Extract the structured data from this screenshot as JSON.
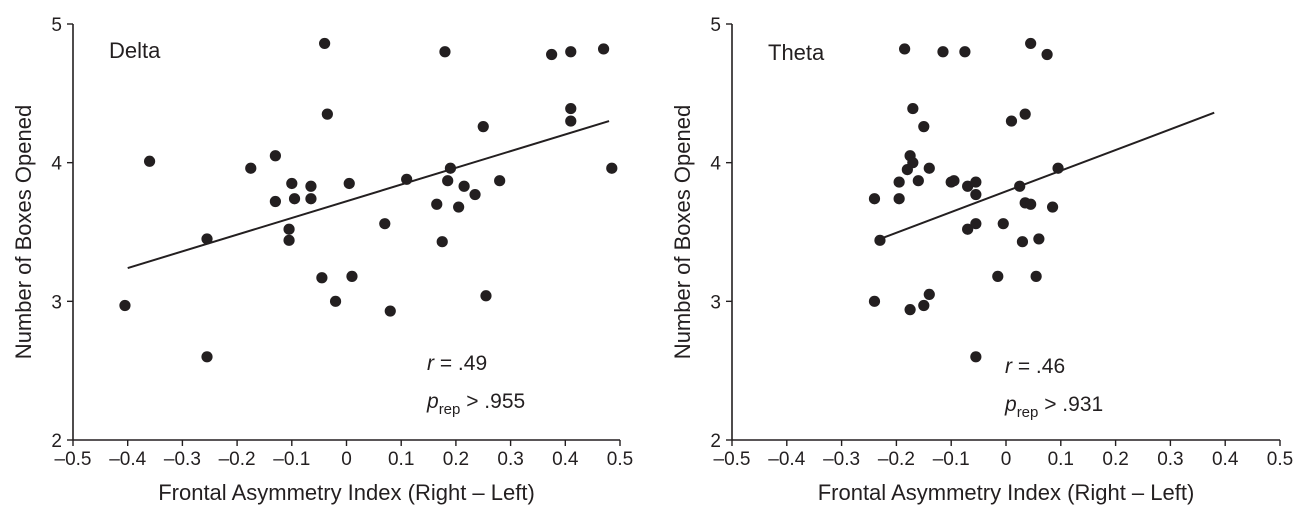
{
  "chart_data": [
    {
      "type": "scatter",
      "panel_label": "Delta",
      "xlabel": "Frontal Asymmetry Index (Right – Left)",
      "ylabel": "Number of Boxes Opened",
      "xlim": [
        -0.5,
        0.5
      ],
      "ylim": [
        2,
        5
      ],
      "x_ticks": [
        "–0.5",
        "–0.4",
        "–0.3",
        "–0.2",
        "–0.1",
        "0",
        "0.1",
        "0.2",
        "0.3",
        "0.4",
        "0.5"
      ],
      "y_ticks": [
        "2",
        "3",
        "4",
        "5"
      ],
      "grid": false,
      "stats": {
        "r_symbol": "r",
        "r_value": " = .49",
        "p_symbol": "p",
        "p_sub": "rep",
        "p_value": " > .955"
      },
      "fit_line": {
        "x": [
          -0.4,
          0.48
        ],
        "y": [
          3.24,
          4.3
        ]
      },
      "points": [
        {
          "x": -0.405,
          "y": 2.97
        },
        {
          "x": -0.36,
          "y": 4.01
        },
        {
          "x": -0.255,
          "y": 3.45
        },
        {
          "x": -0.255,
          "y": 2.6
        },
        {
          "x": -0.175,
          "y": 3.96
        },
        {
          "x": -0.13,
          "y": 4.05
        },
        {
          "x": -0.13,
          "y": 3.72
        },
        {
          "x": -0.1,
          "y": 3.85
        },
        {
          "x": -0.095,
          "y": 3.74
        },
        {
          "x": -0.105,
          "y": 3.52
        },
        {
          "x": -0.105,
          "y": 3.44
        },
        {
          "x": -0.065,
          "y": 3.83
        },
        {
          "x": -0.065,
          "y": 3.74
        },
        {
          "x": -0.04,
          "y": 4.86
        },
        {
          "x": -0.035,
          "y": 4.35
        },
        {
          "x": -0.045,
          "y": 3.17
        },
        {
          "x": -0.02,
          "y": 3.0
        },
        {
          "x": 0.005,
          "y": 3.85
        },
        {
          "x": 0.01,
          "y": 3.18
        },
        {
          "x": 0.07,
          "y": 3.56
        },
        {
          "x": 0.08,
          "y": 2.93
        },
        {
          "x": 0.11,
          "y": 3.88
        },
        {
          "x": 0.165,
          "y": 3.7
        },
        {
          "x": 0.175,
          "y": 3.43
        },
        {
          "x": 0.18,
          "y": 4.8
        },
        {
          "x": 0.185,
          "y": 3.87
        },
        {
          "x": 0.19,
          "y": 3.96
        },
        {
          "x": 0.205,
          "y": 3.68
        },
        {
          "x": 0.215,
          "y": 3.83
        },
        {
          "x": 0.235,
          "y": 3.77
        },
        {
          "x": 0.25,
          "y": 4.26
        },
        {
          "x": 0.255,
          "y": 3.04
        },
        {
          "x": 0.28,
          "y": 3.87
        },
        {
          "x": 0.375,
          "y": 4.78
        },
        {
          "x": 0.41,
          "y": 4.8
        },
        {
          "x": 0.41,
          "y": 4.39
        },
        {
          "x": 0.41,
          "y": 4.3
        },
        {
          "x": 0.47,
          "y": 4.82
        },
        {
          "x": 0.485,
          "y": 3.96
        }
      ]
    },
    {
      "type": "scatter",
      "panel_label": "Theta",
      "xlabel": "Frontal Asymmetry Index (Right – Left)",
      "ylabel": "Number of Boxes Opened",
      "xlim": [
        -0.5,
        0.5
      ],
      "ylim": [
        2,
        5
      ],
      "x_ticks": [
        "–0.5",
        "–0.4",
        "–0.3",
        "–0.2",
        "–0.1",
        "0",
        "0.1",
        "0.2",
        "0.3",
        "0.4",
        "0.5"
      ],
      "y_ticks": [
        "2",
        "3",
        "4",
        "5"
      ],
      "grid": false,
      "stats": {
        "r_symbol": "r",
        "r_value": " = .46",
        "p_symbol": "p",
        "p_sub": "rep",
        "p_value": " > .931"
      },
      "fit_line": {
        "x": [
          -0.23,
          0.38
        ],
        "y": [
          3.45,
          4.36
        ]
      },
      "points": [
        {
          "x": -0.24,
          "y": 3.74
        },
        {
          "x": -0.24,
          "y": 3.0
        },
        {
          "x": -0.23,
          "y": 3.44
        },
        {
          "x": -0.195,
          "y": 3.86
        },
        {
          "x": -0.195,
          "y": 3.74
        },
        {
          "x": -0.185,
          "y": 4.82
        },
        {
          "x": -0.18,
          "y": 3.95
        },
        {
          "x": -0.175,
          "y": 4.05
        },
        {
          "x": -0.17,
          "y": 4.39
        },
        {
          "x": -0.17,
          "y": 4.0
        },
        {
          "x": -0.175,
          "y": 2.94
        },
        {
          "x": -0.16,
          "y": 3.87
        },
        {
          "x": -0.15,
          "y": 4.26
        },
        {
          "x": -0.15,
          "y": 2.97
        },
        {
          "x": -0.14,
          "y": 3.96
        },
        {
          "x": -0.14,
          "y": 3.05
        },
        {
          "x": -0.115,
          "y": 4.8
        },
        {
          "x": -0.1,
          "y": 3.86
        },
        {
          "x": -0.095,
          "y": 3.87
        },
        {
          "x": -0.075,
          "y": 4.8
        },
        {
          "x": -0.07,
          "y": 3.83
        },
        {
          "x": -0.07,
          "y": 3.52
        },
        {
          "x": -0.055,
          "y": 3.77
        },
        {
          "x": -0.055,
          "y": 3.86
        },
        {
          "x": -0.055,
          "y": 3.56
        },
        {
          "x": -0.055,
          "y": 2.6
        },
        {
          "x": -0.015,
          "y": 3.18
        },
        {
          "x": -0.005,
          "y": 3.56
        },
        {
          "x": 0.01,
          "y": 4.3
        },
        {
          "x": 0.025,
          "y": 3.83
        },
        {
          "x": 0.03,
          "y": 3.43
        },
        {
          "x": 0.035,
          "y": 4.35
        },
        {
          "x": 0.035,
          "y": 3.71
        },
        {
          "x": 0.045,
          "y": 3.7
        },
        {
          "x": 0.045,
          "y": 4.86
        },
        {
          "x": 0.055,
          "y": 3.18
        },
        {
          "x": 0.06,
          "y": 3.45
        },
        {
          "x": 0.075,
          "y": 4.78
        },
        {
          "x": 0.085,
          "y": 3.68
        },
        {
          "x": 0.095,
          "y": 3.96
        }
      ]
    }
  ]
}
